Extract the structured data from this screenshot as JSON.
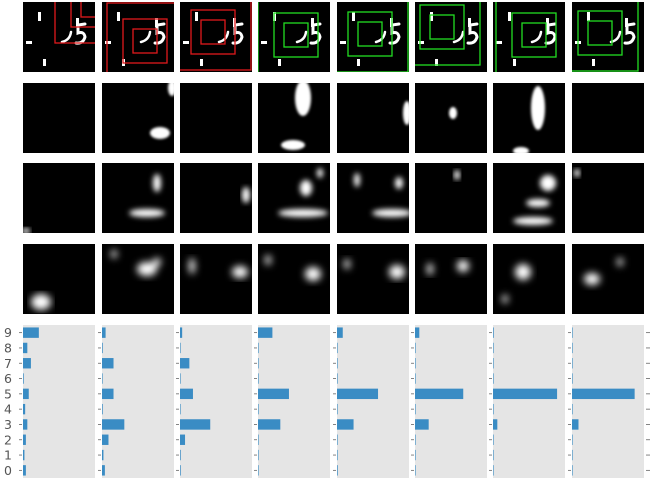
{
  "colors": {
    "background": "#ffffff",
    "tile_background": "#000000",
    "glimpse_box_wrong": "#e0191b",
    "glimpse_box_correct": "#22dd22",
    "bar_fill": "#3a8cc4",
    "bar_panel_bg": "#e5e5e5",
    "tick_label": "#555555"
  },
  "steps": [
    {
      "box_color": "wrong"
    },
    {
      "box_color": "wrong"
    },
    {
      "box_color": "wrong"
    },
    {
      "box_color": "correct"
    },
    {
      "box_color": "correct"
    },
    {
      "box_color": "correct"
    },
    {
      "box_color": "correct"
    },
    {
      "box_color": "correct"
    }
  ],
  "chart_data": {
    "type": "bar",
    "orientation": "horizontal",
    "categories": [
      "0",
      "1",
      "2",
      "3",
      "4",
      "5",
      "6",
      "7",
      "8",
      "9"
    ],
    "xlim": [
      0,
      1
    ],
    "grid": false,
    "series": [
      {
        "values": [
          0.04,
          0.02,
          0.04,
          0.06,
          0.03,
          0.08,
          0.01,
          0.11,
          0.06,
          0.22
        ]
      },
      {
        "values": [
          0.04,
          0.02,
          0.09,
          0.31,
          0.01,
          0.16,
          0.0,
          0.16,
          0.01,
          0.05
        ]
      },
      {
        "values": [
          0.01,
          0.01,
          0.07,
          0.42,
          0.0,
          0.18,
          0.0,
          0.13,
          0.0,
          0.03
        ]
      },
      {
        "values": [
          0.0,
          0.0,
          0.0,
          0.31,
          0.0,
          0.43,
          0.0,
          0.0,
          0.0,
          0.2
        ]
      },
      {
        "values": [
          0.01,
          0.0,
          0.0,
          0.23,
          0.0,
          0.57,
          0.0,
          0.0,
          0.0,
          0.08
        ]
      },
      {
        "values": [
          0.0,
          0.0,
          0.0,
          0.19,
          0.0,
          0.67,
          0.0,
          0.0,
          0.0,
          0.06
        ]
      },
      {
        "values": [
          0.0,
          0.0,
          0.0,
          0.06,
          0.0,
          0.89,
          0.0,
          0.0,
          0.0,
          0.01
        ]
      },
      {
        "values": [
          0.0,
          0.0,
          0.0,
          0.09,
          0.0,
          0.87,
          0.0,
          0.0,
          0.0,
          0.0
        ]
      }
    ]
  }
}
